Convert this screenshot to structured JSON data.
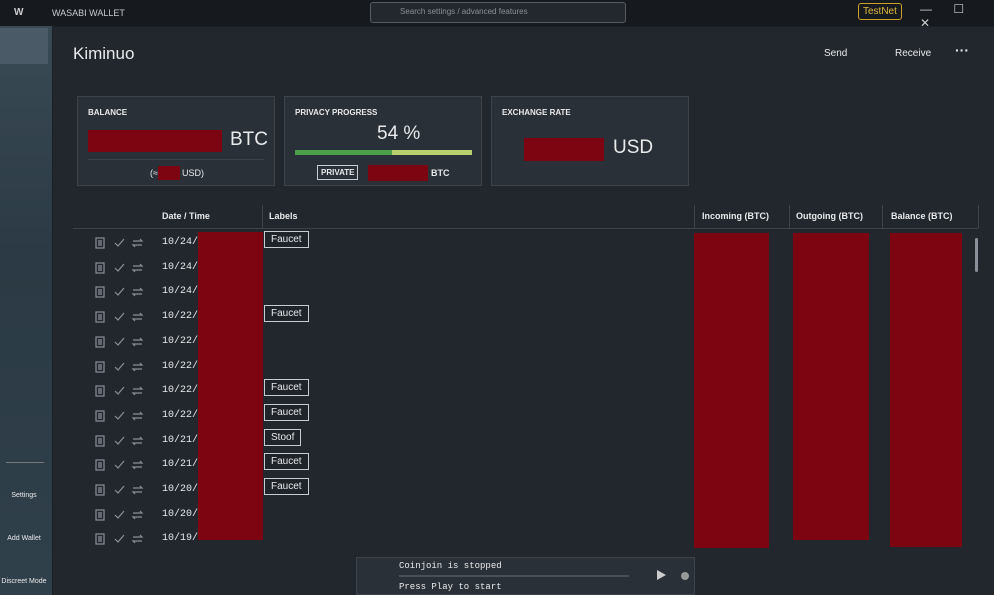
{
  "titlebar": {
    "app": "WASABI WALLET",
    "search": "Search settings / advanced features",
    "network": "TestNet"
  },
  "sidebar": {
    "items": [
      "Settings",
      "Add Wallet",
      "Discreet Mode"
    ]
  },
  "header": {
    "wallet": "Kiminuo",
    "send": "Send",
    "receive": "Receive"
  },
  "cards": {
    "balance": {
      "title": "BALANCE",
      "unit": "BTC",
      "approx": "(≈",
      "usd": "USD)"
    },
    "privacy": {
      "title": "PRIVACY PROGRESS",
      "percent": "54 %",
      "private": "PRIVATE",
      "unit": "BTC"
    },
    "rate": {
      "title": "EXCHANGE RATE",
      "unit": "USD"
    }
  },
  "table": {
    "headers": [
      "Date / Time",
      "Labels",
      "Incoming (BTC)",
      "Outgoing (BTC)",
      "Balance (BTC)"
    ],
    "rows": [
      [
        "10/24/",
        "Faucet"
      ],
      [
        "10/24/",
        null
      ],
      [
        "10/24/",
        null
      ],
      [
        "10/22/",
        "Faucet"
      ],
      [
        "10/22/",
        null
      ],
      [
        "10/22/",
        null
      ],
      [
        "10/22/",
        "Faucet"
      ],
      [
        "10/22/",
        "Faucet"
      ],
      [
        "10/21/",
        "Stoof"
      ],
      [
        "10/21/",
        "Faucet"
      ],
      [
        "10/20/",
        "Faucet"
      ],
      [
        "10/20/",
        null
      ],
      [
        "10/19/",
        null
      ]
    ]
  },
  "coinjoin": {
    "status": "Coinjoin is stopped",
    "hint": "Press Play to start"
  }
}
